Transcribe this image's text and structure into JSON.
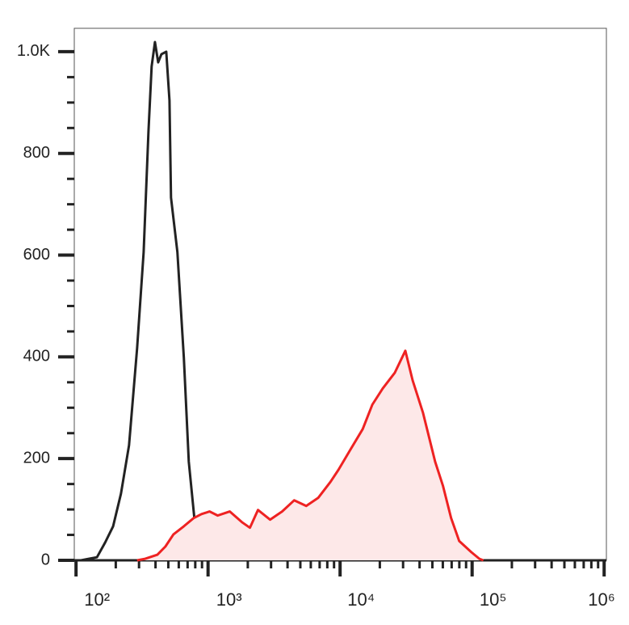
{
  "chart_data": {
    "type": "histogram-overlay",
    "xscale": "log",
    "xlim": [
      97,
      1040000
    ],
    "ylim": [
      0,
      1046
    ],
    "xticks": [
      {
        "value": 100,
        "label": "10²"
      },
      {
        "value": 1000,
        "label": "10³"
      },
      {
        "value": 10000,
        "label": "10⁴"
      },
      {
        "value": 100000,
        "label": "10⁵"
      },
      {
        "value": 1000000,
        "label": "10⁶"
      }
    ],
    "xminorticks": [
      200,
      300,
      400,
      500,
      600,
      700,
      800,
      900,
      2000,
      3000,
      4000,
      5000,
      6000,
      7000,
      8000,
      9000,
      20000,
      30000,
      40000,
      50000,
      60000,
      70000,
      80000,
      90000,
      200000,
      300000,
      400000,
      500000,
      600000,
      700000,
      800000,
      900000
    ],
    "yticks": [
      0,
      200,
      400,
      600,
      800,
      {
        "value": 1000,
        "label": "1.0K"
      }
    ],
    "yminorticks": [
      50,
      100,
      150,
      250,
      300,
      350,
      450,
      500,
      550,
      650,
      700,
      750,
      850,
      900,
      950
    ],
    "series": [
      {
        "color": "#222222",
        "fill": null,
        "x": [
          109,
          125,
          144,
          166,
          191,
          219,
          252,
          290,
          325,
          354,
          374,
          396,
          419,
          443,
          482,
          510,
          524,
          586,
          656,
          714,
          798,
          893,
          1028,
          1361,
          2388,
          5546,
          14830,
          39630,
          121600
        ],
        "values": [
          0,
          3,
          6,
          35,
          67,
          131,
          226,
          417,
          606,
          844,
          971,
          1019,
          979,
          995,
          1000,
          904,
          713,
          606,
          398,
          194,
          67,
          27,
          11,
          6,
          3,
          2,
          0,
          0,
          0
        ]
      },
      {
        "color": "#ee2222",
        "fill": "#fde8e8",
        "x": [
          290,
          334,
          413,
          475,
          547,
          656,
          777,
          893,
          1028,
          1183,
          1462,
          1804,
          2076,
          2388,
          2951,
          3640,
          4489,
          5546,
          6842,
          8451,
          9724,
          12000,
          14830,
          17540,
          21050,
          25990,
          31190,
          35400,
          42460,
          52480,
          60260,
          69340,
          79800,
          98620,
          113500,
          121600
        ],
        "values": [
          0,
          3,
          11,
          27,
          51,
          67,
          83,
          91,
          96,
          88,
          96,
          75,
          64,
          99,
          80,
          96,
          118,
          107,
          123,
          154,
          178,
          218,
          258,
          306,
          338,
          369,
          412,
          354,
          290,
          194,
          146,
          83,
          38,
          16,
          3,
          0
        ]
      }
    ]
  }
}
